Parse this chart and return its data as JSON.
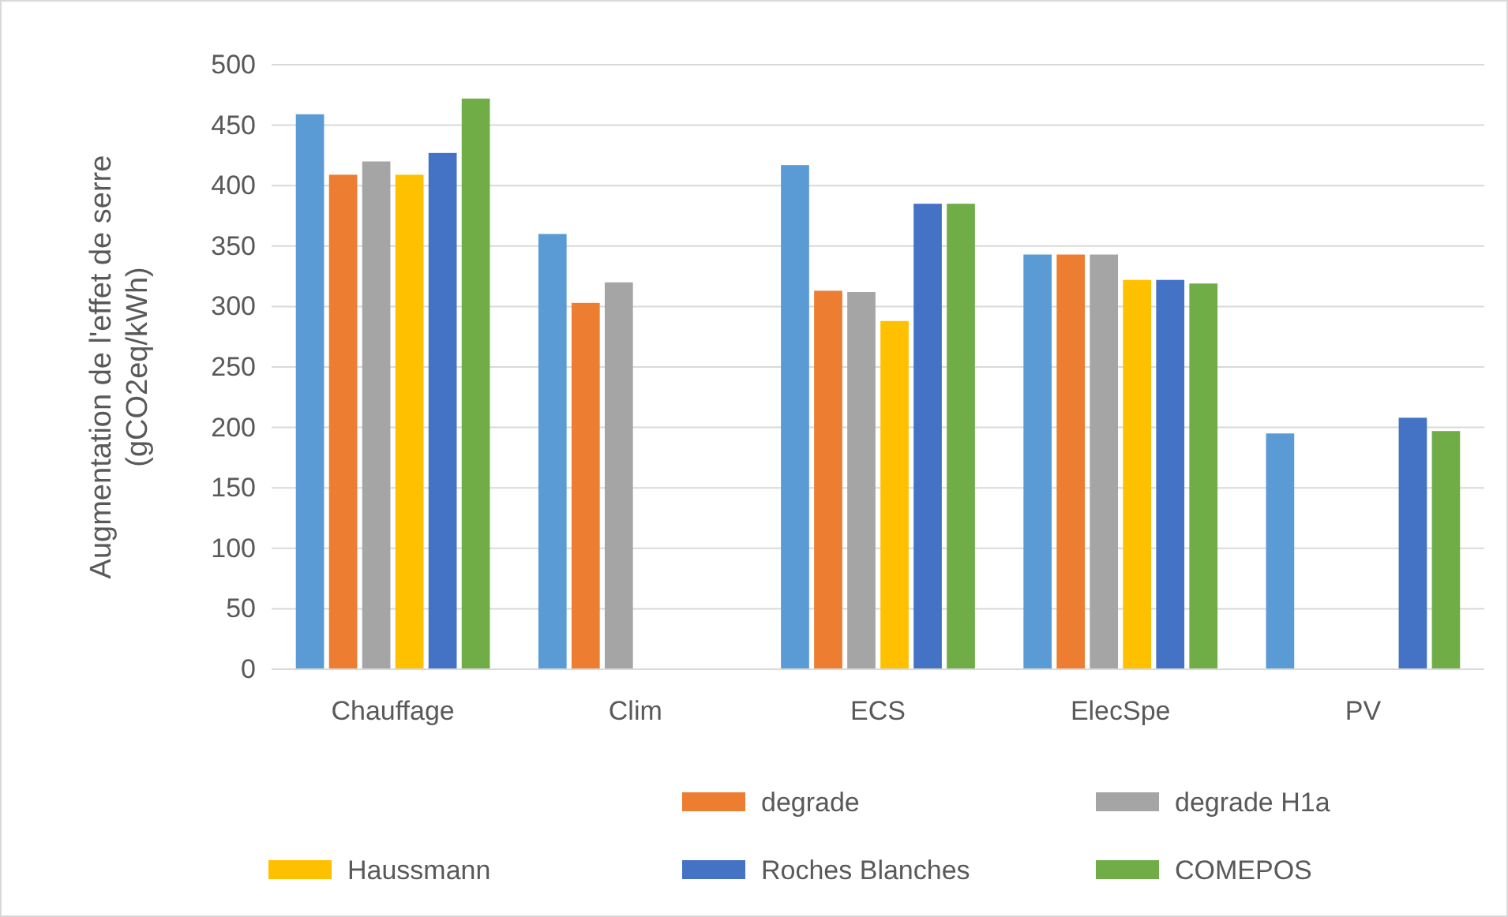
{
  "chart_data": {
    "type": "bar",
    "ylabel": "Augmentation de l'effet de serre\n(gCO2eq/kWh)",
    "categories": [
      "Chauffage",
      "Clim",
      "ECS",
      "ElecSpe",
      "PV"
    ],
    "series": [
      {
        "color": "#5b9bd5",
        "values": [
          459,
          360,
          417,
          343,
          195
        ]
      },
      {
        "name": "degrade",
        "color": "#ed7d31",
        "values": [
          409,
          303,
          313,
          343,
          null
        ]
      },
      {
        "name": "degrade H1a",
        "color": "#a5a5a5",
        "values": [
          420,
          320,
          312,
          343,
          null
        ]
      },
      {
        "name": "Haussmann",
        "color": "#ffc000",
        "values": [
          409,
          null,
          288,
          322,
          null
        ]
      },
      {
        "name": "Roches  Blanches",
        "color": "#4472c4",
        "values": [
          427,
          null,
          385,
          322,
          208
        ]
      },
      {
        "name": "COMEPOS",
        "color": "#70ad47",
        "values": [
          472,
          null,
          385,
          319,
          197
        ]
      }
    ],
    "ylim": [
      0,
      500
    ],
    "yticks": [
      0,
      50,
      100,
      150,
      200,
      250,
      300,
      350,
      400,
      450,
      500
    ],
    "grid": "y",
    "legend": "bottom"
  }
}
